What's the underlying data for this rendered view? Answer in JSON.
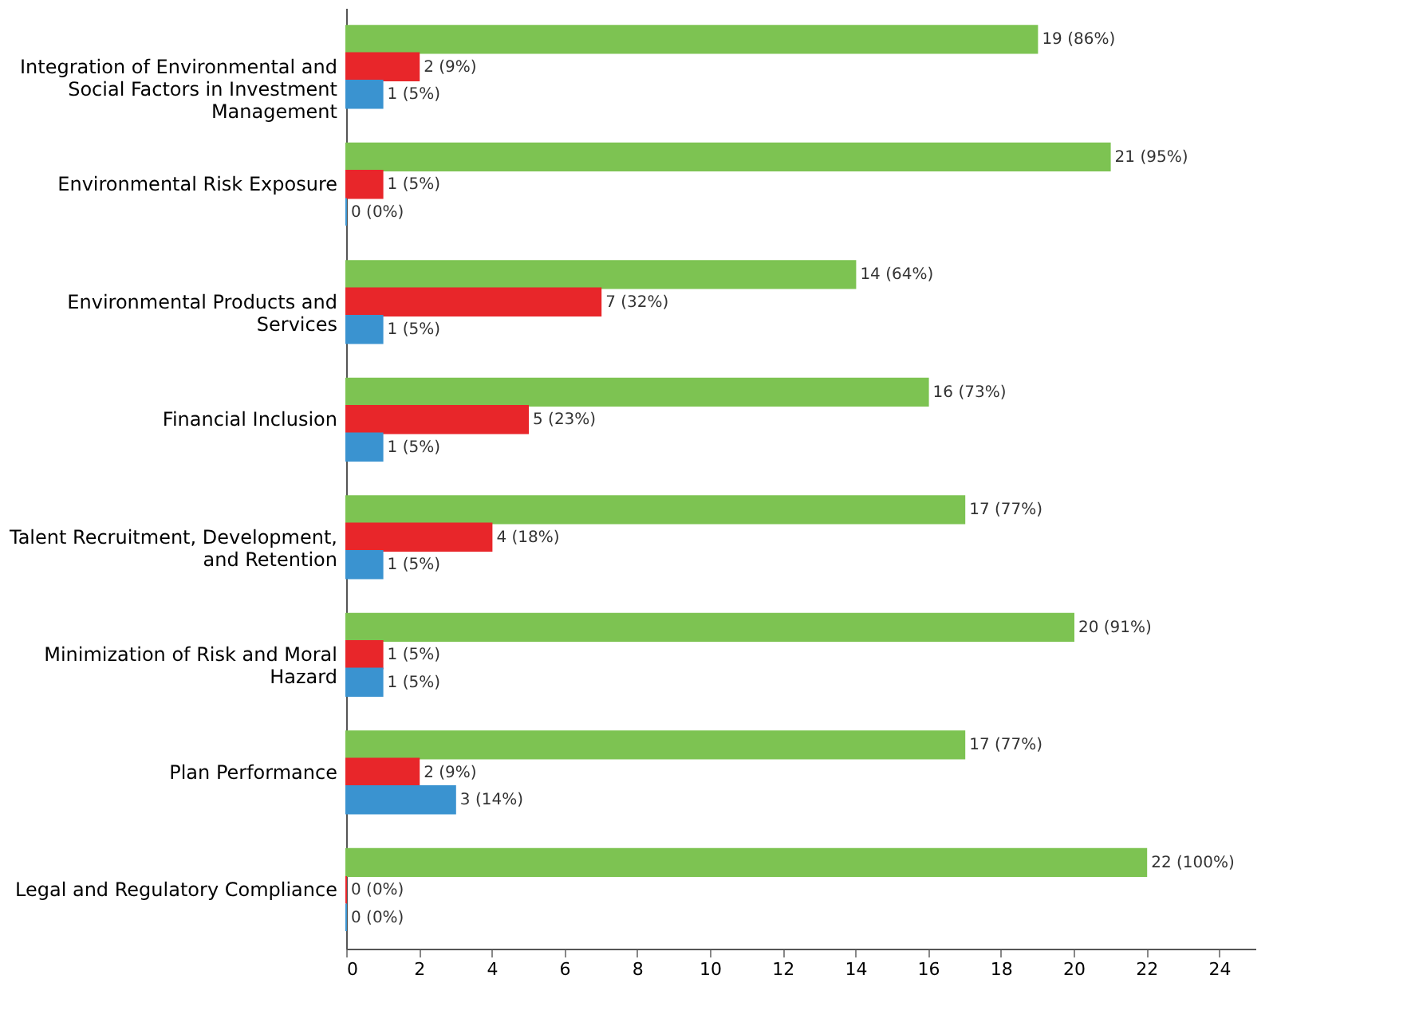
{
  "chart_data": {
    "type": "bar",
    "orientation": "horizontal",
    "categories": [
      "Integration of Environmental and Social Factors in Investment Management",
      "Environmental Risk Exposure",
      "Environmental Products and Services",
      "Financial Inclusion",
      "Talent Recruitment, Development, and Retention",
      "Minimization of Risk and Moral Hazard",
      "Plan Performance",
      "Legal and Regulatory Compliance"
    ],
    "series": [
      {
        "color": "#7dc352",
        "values": [
          19,
          21,
          14,
          16,
          17,
          20,
          17,
          22
        ],
        "value_labels": [
          "19 (86%)",
          "21 (95%)",
          "14 (64%)",
          "16 (73%)",
          "17 (77%)",
          "20 (91%)",
          "17 (77%)",
          "22 (100%)"
        ]
      },
      {
        "color": "#e8262a",
        "values": [
          2,
          1,
          7,
          5,
          4,
          1,
          2,
          0
        ],
        "value_labels": [
          "2 (9%)",
          "1 (5%)",
          "7 (32%)",
          "5 (23%)",
          "4 (18%)",
          "1 (5%)",
          "2 (9%)",
          "0 (0%)"
        ]
      },
      {
        "color": "#3a93d0",
        "values": [
          1,
          0,
          1,
          1,
          1,
          1,
          3,
          0
        ],
        "value_labels": [
          "1 (5%)",
          "0 (0%)",
          "1 (5%)",
          "1 (5%)",
          "1 (5%)",
          "1 (5%)",
          "3 (14%)",
          "0 (0%)"
        ]
      }
    ],
    "xlim": [
      0,
      25
    ],
    "xticks": [
      0,
      2,
      4,
      6,
      8,
      10,
      12,
      14,
      16,
      18,
      20,
      22,
      24
    ],
    "grid": false,
    "legend": false
  }
}
